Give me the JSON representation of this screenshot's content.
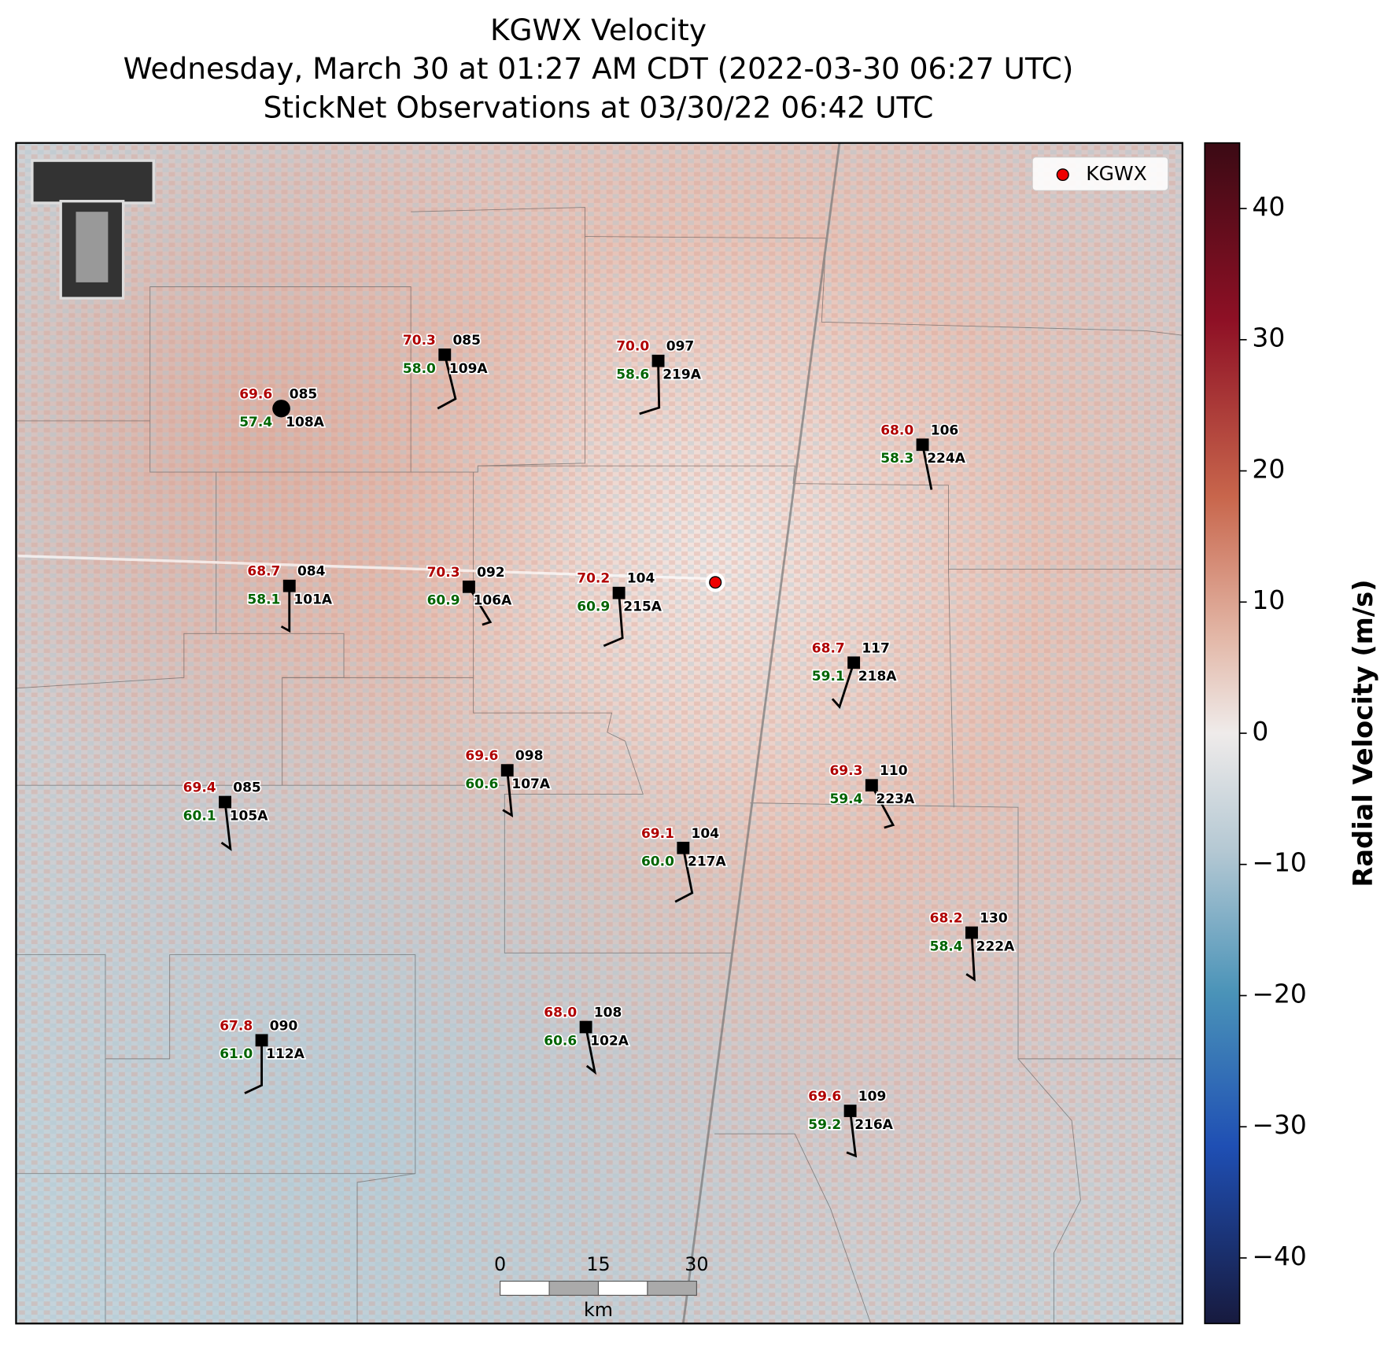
{
  "title": [
    "KGWX Velocity",
    "Wednesday, March 30 at 01:27 AM CDT (2022-03-30 06:27 UTC)",
    "StickNet Observations at 03/30/22 06:42 UTC"
  ],
  "legend": "KGWX",
  "scale_bar": {
    "ticks": [
      "0",
      "15",
      "30"
    ],
    "unit": "km"
  },
  "colorbar": {
    "label": "Radial Velocity (m/s)",
    "lim": [
      -45,
      45
    ],
    "ticks": [
      {
        "value": -40,
        "label": "−40"
      },
      {
        "value": -30,
        "label": "−30"
      },
      {
        "value": -20,
        "label": "−20"
      },
      {
        "value": -10,
        "label": "−10"
      },
      0,
      10,
      20,
      30,
      40
    ]
  },
  "stations": [
    {
      "id": "109A",
      "temp": "70.3",
      "dew": "58.0",
      "code": "085"
    },
    {
      "id": "108A",
      "temp": "69.6",
      "dew": "57.4",
      "code": "085"
    },
    {
      "id": "219A",
      "temp": "70.0",
      "dew": "58.6",
      "code": "097"
    },
    {
      "id": "224A",
      "temp": "68.0",
      "dew": "58.3",
      "code": "106"
    },
    {
      "id": "101A",
      "temp": "68.7",
      "dew": "58.1",
      "code": "084"
    },
    {
      "id": "106A",
      "temp": "70.3",
      "dew": "60.9",
      "code": "092"
    },
    {
      "id": "215A",
      "temp": "70.2",
      "dew": "60.9",
      "code": "104"
    },
    {
      "id": "218A",
      "temp": "68.7",
      "dew": "59.1",
      "code": "117"
    },
    {
      "id": "107A",
      "temp": "69.6",
      "dew": "60.6",
      "code": "098"
    },
    {
      "id": "105A",
      "temp": "69.4",
      "dew": "60.1",
      "code": "085"
    },
    {
      "id": "223A",
      "temp": "69.3",
      "dew": "59.4",
      "code": "110"
    },
    {
      "id": "217A",
      "temp": "69.1",
      "dew": "60.0",
      "code": "104"
    },
    {
      "id": "222A",
      "temp": "68.2",
      "dew": "58.4",
      "code": "130"
    },
    {
      "id": "112A",
      "temp": "67.8",
      "dew": "61.0",
      "code": "090"
    },
    {
      "id": "102A",
      "temp": "68.0",
      "dew": "60.6",
      "code": "108"
    },
    {
      "id": "216A",
      "temp": "69.6",
      "dew": "59.2",
      "code": "109"
    }
  ]
}
